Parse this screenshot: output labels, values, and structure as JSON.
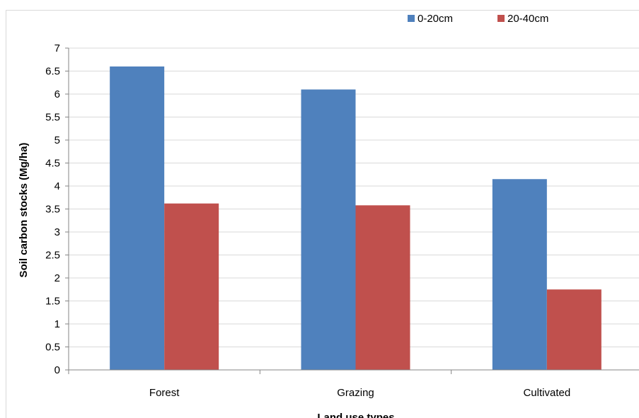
{
  "chart_data": {
    "type": "bar",
    "title": "",
    "xlabel": "Land use types",
    "ylabel": "Soil carbon stocks (Mg/ha)",
    "categories": [
      "Forest",
      "Grazing",
      "Cultivated"
    ],
    "series": [
      {
        "name": "0-20cm",
        "color": "#4f81bd",
        "values": [
          6.6,
          6.1,
          4.15
        ]
      },
      {
        "name": "20-40cm",
        "color": "#c0504d",
        "values": [
          3.62,
          3.58,
          1.75
        ]
      }
    ],
    "ylim": [
      0,
      7
    ],
    "ytick_step": 0.5,
    "ytick_labels": [
      "0",
      "0.5",
      "1",
      "1.5",
      "2",
      "2.5",
      "3",
      "3.5",
      "4",
      "4.5",
      "5",
      "5.5",
      "6",
      "6.5",
      "7"
    ],
    "grid": true,
    "grid_color": "#d9d9d9",
    "legend_position": "top-right"
  }
}
